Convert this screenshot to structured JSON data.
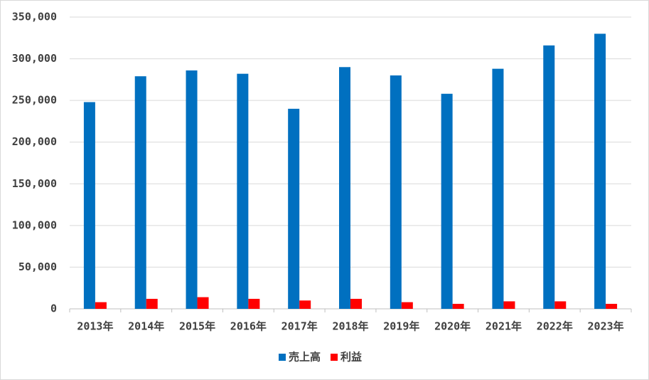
{
  "chart_data": {
    "type": "bar",
    "categories": [
      "2013年",
      "2014年",
      "2015年",
      "2016年",
      "2017年",
      "2018年",
      "2019年",
      "2020年",
      "2021年",
      "2022年",
      "2023年"
    ],
    "series": [
      {
        "name": "売上高",
        "color": "#0070c0",
        "values": [
          248000,
          279000,
          286000,
          282000,
          240000,
          290000,
          280000,
          258000,
          288000,
          316000,
          330000
        ]
      },
      {
        "name": "利益",
        "color": "#ff0000",
        "values": [
          8000,
          12000,
          14000,
          12000,
          10000,
          12000,
          8000,
          6000,
          9000,
          9000,
          6000
        ]
      }
    ],
    "ylim": [
      0,
      350000
    ],
    "yticks": [
      0,
      {
        "value": 50000,
        "label": "50,000"
      },
      {
        "value": 100000,
        "label": "100,000"
      },
      {
        "value": 150000,
        "label": "150,000"
      },
      {
        "value": 200000,
        "label": "200,000"
      },
      {
        "value": 250000,
        "label": "250,000"
      },
      {
        "value": 300000,
        "label": "300,000"
      },
      {
        "value": 350000,
        "label": "350,000"
      }
    ],
    "grid": true,
    "legend": "bottom"
  }
}
